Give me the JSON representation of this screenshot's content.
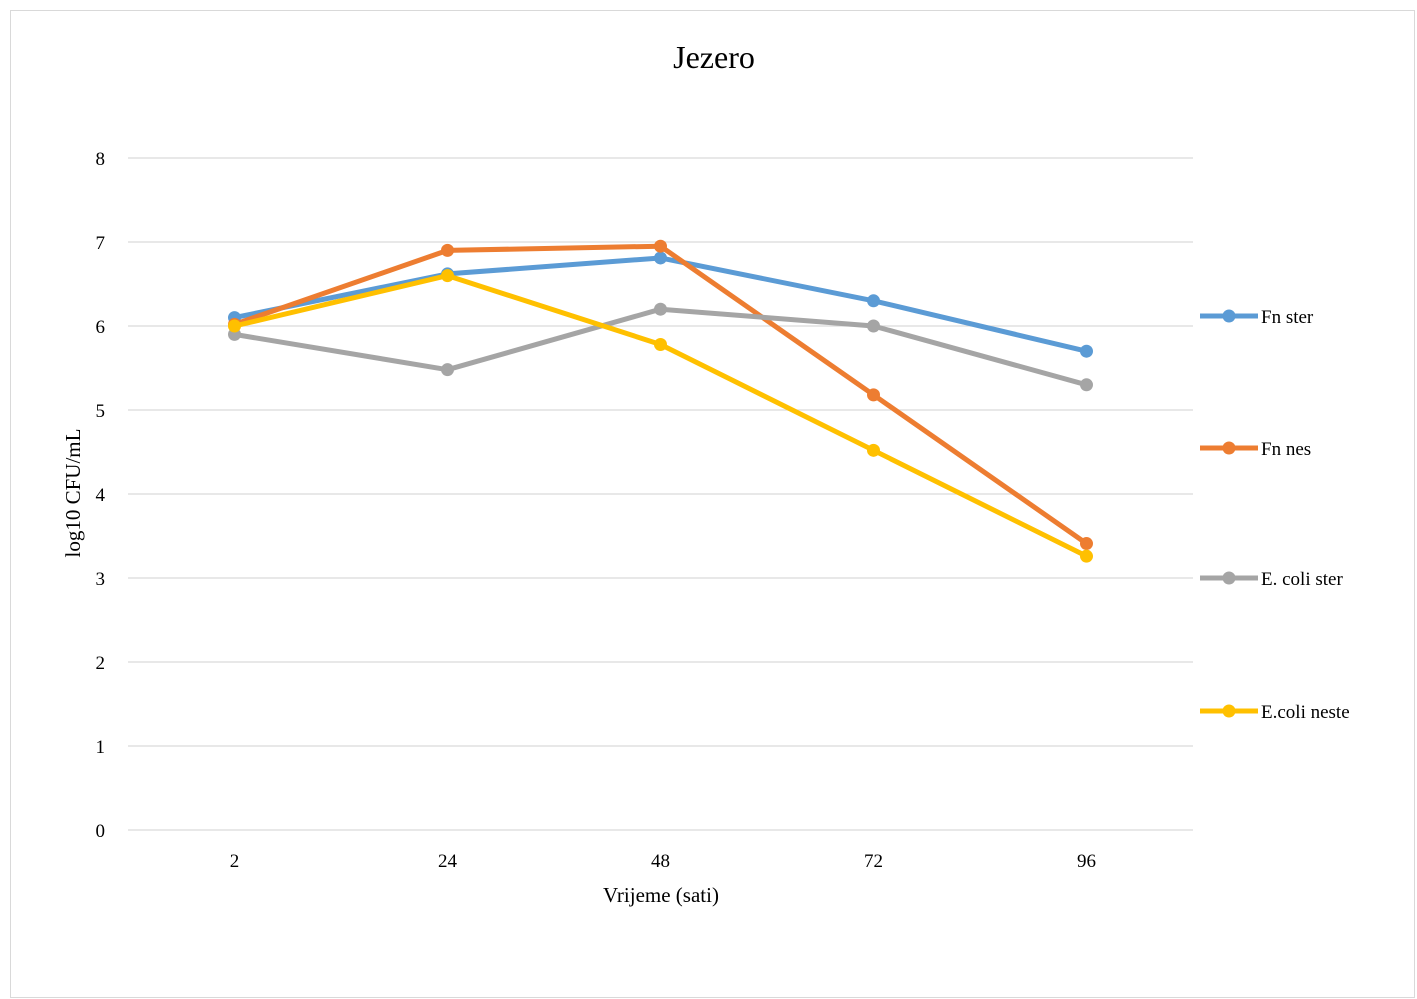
{
  "chart_data": {
    "type": "line",
    "title": "Jezero",
    "xlabel": "Vrijeme (sati)",
    "ylabel": "log10 CFU/mL",
    "categories": [
      "2",
      "24",
      "48",
      "72",
      "96"
    ],
    "ylim": [
      0,
      8
    ],
    "yticks": [
      "0",
      "1",
      "2",
      "3",
      "4",
      "5",
      "6",
      "7",
      "8"
    ],
    "grid": true,
    "legend_position": "right",
    "series": [
      {
        "name": "Fn ster",
        "color": "#5B9BD5",
        "values": [
          6.1,
          6.62,
          6.81,
          6.3,
          5.7
        ]
      },
      {
        "name": "Fn nes",
        "color": "#ED7D31",
        "values": [
          6.02,
          6.9,
          6.95,
          5.18,
          3.41
        ]
      },
      {
        "name": "E. coli ster",
        "color": "#A5A5A5",
        "values": [
          5.9,
          5.48,
          6.2,
          6.0,
          5.3
        ]
      },
      {
        "name": "E.coli neste",
        "color": "#FFC000",
        "values": [
          6.0,
          6.6,
          5.78,
          4.52,
          3.26
        ]
      }
    ]
  }
}
